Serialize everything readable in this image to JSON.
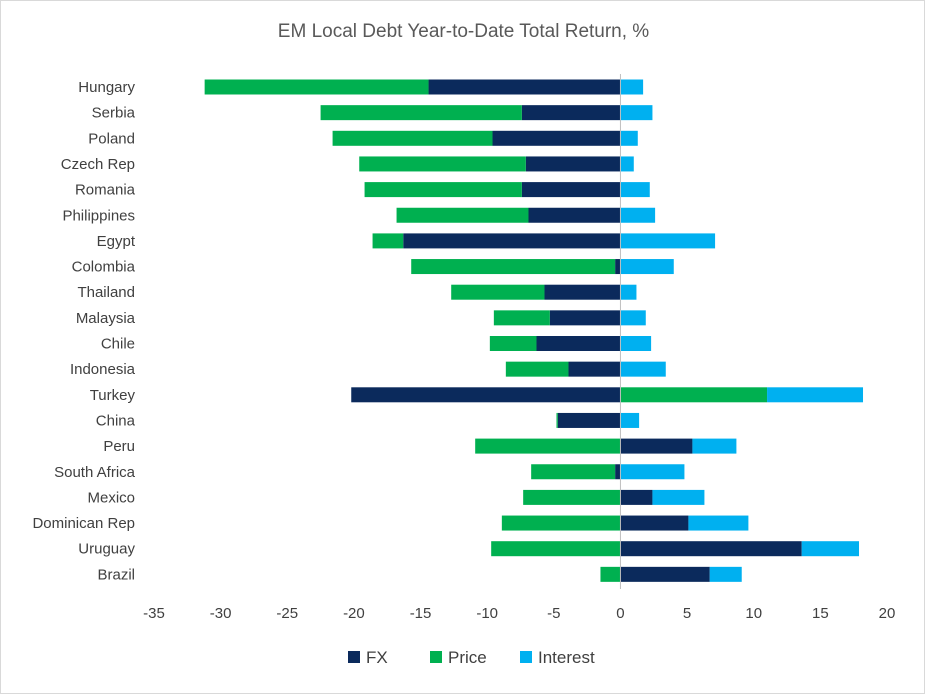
{
  "chart_data": {
    "type": "bar",
    "stacked": true,
    "orientation": "horizontal",
    "title": "EM Local Debt Year-to-Date Total Return, %",
    "categories": [
      "Hungary",
      "Serbia",
      "Poland",
      "Czech Rep",
      "Romania",
      "Philippines",
      "Egypt",
      "Colombia",
      "Thailand",
      "Malaysia",
      "Chile",
      "Indonesia",
      "Turkey",
      "China",
      "Peru",
      "South Africa",
      "Mexico",
      "Dominican Rep",
      "Uruguay",
      "Brazil"
    ],
    "series": [
      {
        "name": "FX",
        "color": "#0b2a5c",
        "values": [
          -14.4,
          -7.4,
          -9.6,
          -7.1,
          -7.4,
          -6.9,
          -16.3,
          -0.4,
          -5.7,
          -5.3,
          -6.3,
          -3.9,
          -20.2,
          -4.7,
          5.4,
          -0.4,
          2.4,
          5.1,
          13.6,
          6.7
        ]
      },
      {
        "name": "Price",
        "color": "#00b050",
        "values": [
          -16.8,
          -15.1,
          -12.0,
          -12.5,
          -11.8,
          -9.9,
          -2.3,
          -15.3,
          -7.0,
          -4.2,
          -3.5,
          -4.7,
          11.0,
          -0.1,
          -10.9,
          -6.3,
          -7.3,
          -8.9,
          -9.7,
          -1.5
        ]
      },
      {
        "name": "Interest",
        "color": "#00b0f0",
        "values": [
          1.7,
          2.4,
          1.3,
          1.0,
          2.2,
          2.6,
          7.1,
          4.0,
          1.2,
          1.9,
          2.3,
          3.4,
          7.2,
          1.4,
          3.3,
          4.8,
          3.9,
          4.5,
          4.3,
          2.4
        ]
      }
    ],
    "xlim": [
      -35,
      20
    ],
    "xticks": [
      -35,
      -30,
      -25,
      -20,
      -15,
      -10,
      -5,
      0,
      5,
      10,
      15,
      20
    ],
    "grid": false,
    "legend_position": "bottom"
  }
}
